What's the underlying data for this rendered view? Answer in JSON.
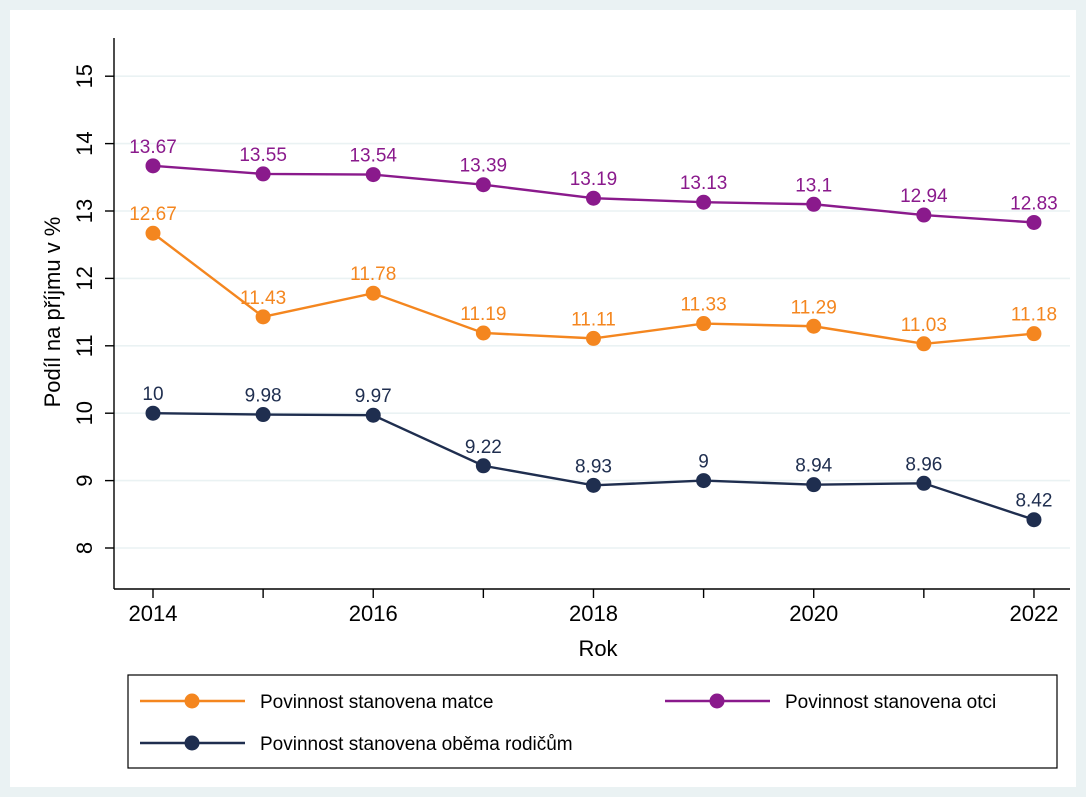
{
  "chart_data": {
    "type": "line",
    "title": "",
    "xlabel": "Rok",
    "ylabel": "Podíl na příjmu v %",
    "x": [
      2014,
      2015,
      2016,
      2017,
      2018,
      2019,
      2020,
      2021,
      2022
    ],
    "xlim": [
      2013.65,
      2022.35
    ],
    "ylim": [
      7.6,
      15.6
    ],
    "x_ticks": [
      2014,
      2016,
      2018,
      2020,
      2022
    ],
    "y_ticks": [
      8,
      9,
      10,
      11,
      12,
      13,
      14,
      15
    ],
    "grid": true,
    "legend_position": "bottom",
    "series": [
      {
        "name": "Povinnost stanovena matce",
        "color": "#f4861f",
        "values": [
          12.67,
          11.43,
          11.78,
          11.19,
          11.11,
          11.33,
          11.29,
          11.03,
          11.18
        ],
        "labels": [
          "12.67",
          "11.43",
          "11.78",
          "11.19",
          "11.11",
          "11.33",
          "11.29",
          "11.03",
          "11.18"
        ]
      },
      {
        "name": "Povinnost stanovena otci",
        "color": "#8a1a8c",
        "values": [
          13.67,
          13.55,
          13.54,
          13.39,
          13.19,
          13.13,
          13.1,
          12.94,
          12.83
        ],
        "labels": [
          "13.67",
          "13.55",
          "13.54",
          "13.39",
          "13.19",
          "13.13",
          "13.1",
          "12.94",
          "12.83"
        ]
      },
      {
        "name": "Povinnost stanovena oběma rodičům",
        "color": "#1f2e4f",
        "values": [
          10,
          9.98,
          9.97,
          9.22,
          8.93,
          9,
          8.94,
          8.96,
          8.42
        ],
        "labels": [
          "10",
          "9.98",
          "9.97",
          "9.22",
          "8.93",
          "9",
          "8.94",
          "8.96",
          "8.42"
        ]
      }
    ],
    "colors": {
      "background": "#eaf2f3",
      "plot_background": "#ffffff",
      "grid": "#eaf2f3",
      "axis": "#000000",
      "text": "#000000"
    }
  }
}
